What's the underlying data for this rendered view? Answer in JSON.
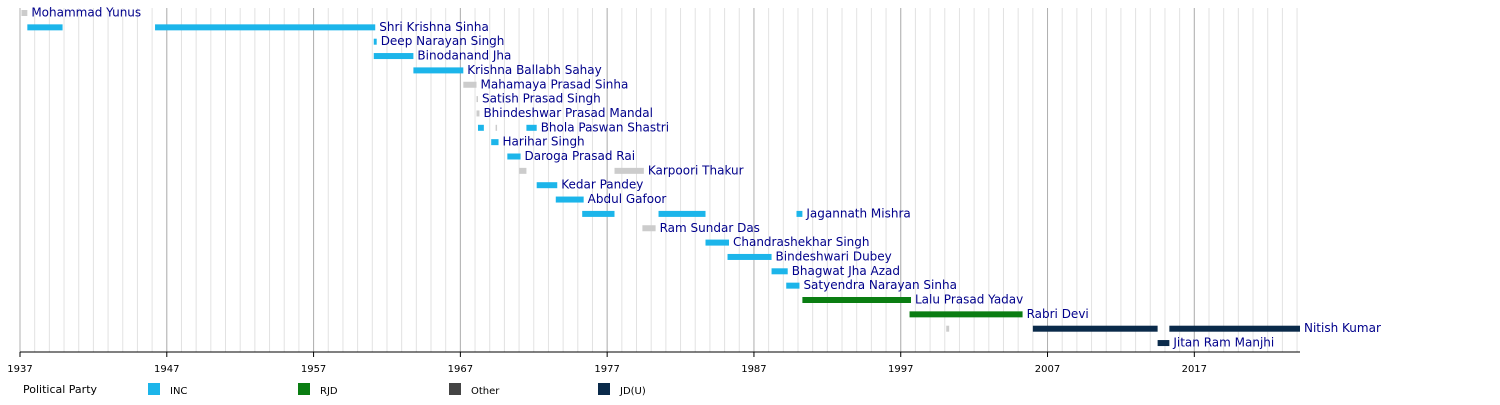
{
  "chart_data": {
    "type": "timeline",
    "xlim": [
      1937,
      2024.2
    ],
    "xticks": [
      1937,
      1947,
      1957,
      1967,
      1977,
      1987,
      1997,
      2007,
      2017
    ],
    "minor_grid": true,
    "legend_title": "Political Party",
    "parties": [
      {
        "name": "INC",
        "color": "#1cb5ea",
        "bar_color": "#1cb5ea"
      },
      {
        "name": "RJD",
        "color": "#0a7d12",
        "bar_color": "#0a7d12"
      },
      {
        "name": "Other",
        "color": "#444444",
        "bar_color": "#cccccc"
      },
      {
        "name": "JD(U)",
        "color": "#0a2a4a",
        "bar_color": "#0a2a4a"
      }
    ],
    "rows": [
      {
        "name": "Mohammad Yunus",
        "segments": [
          {
            "start": 1937.1,
            "end": 1937.5,
            "party": "Other"
          }
        ]
      },
      {
        "name": "Shri Krishna Sinha",
        "segments": [
          {
            "start": 1937.5,
            "end": 1939.9,
            "party": "INC"
          },
          {
            "start": 1946.2,
            "end": 1961.2,
            "party": "INC"
          }
        ]
      },
      {
        "name": "Deep Narayan Singh",
        "segments": [
          {
            "start": 1961.1,
            "end": 1961.3,
            "party": "INC"
          }
        ]
      },
      {
        "name": "Binodanand Jha",
        "segments": [
          {
            "start": 1961.1,
            "end": 1963.8,
            "party": "INC"
          }
        ]
      },
      {
        "name": "Krishna Ballabh Sahay",
        "segments": [
          {
            "start": 1963.8,
            "end": 1967.2,
            "party": "INC"
          }
        ]
      },
      {
        "name": "Mahamaya Prasad Sinha",
        "segments": [
          {
            "start": 1967.2,
            "end": 1968.1,
            "party": "Other"
          }
        ]
      },
      {
        "name": "Satish Prasad Singh",
        "segments": [
          {
            "start": 1968.1,
            "end": 1968.2,
            "party": "Other"
          }
        ]
      },
      {
        "name": "Bhindeshwar Prasad Mandal",
        "segments": [
          {
            "start": 1968.1,
            "end": 1968.3,
            "party": "Other"
          }
        ]
      },
      {
        "name": "Bhola Paswan Shastri",
        "segments": [
          {
            "start": 1968.2,
            "end": 1968.6,
            "party": "INC"
          },
          {
            "start": 1969.4,
            "end": 1969.5,
            "party": "Other"
          },
          {
            "start": 1971.5,
            "end": 1972.2,
            "party": "INC"
          }
        ]
      },
      {
        "name": "Harihar Singh",
        "segments": [
          {
            "start": 1969.1,
            "end": 1969.6,
            "party": "INC"
          }
        ]
      },
      {
        "name": "Daroga Prasad Rai",
        "segments": [
          {
            "start": 1970.2,
            "end": 1971.1,
            "party": "INC"
          }
        ]
      },
      {
        "name": "Karpoori Thakur",
        "segments": [
          {
            "start": 1971.0,
            "end": 1971.5,
            "party": "Other"
          },
          {
            "start": 1977.5,
            "end": 1979.5,
            "party": "Other"
          }
        ]
      },
      {
        "name": "Kedar Pandey",
        "segments": [
          {
            "start": 1972.2,
            "end": 1973.6,
            "party": "INC"
          }
        ]
      },
      {
        "name": "Abdul Gafoor",
        "segments": [
          {
            "start": 1973.5,
            "end": 1975.4,
            "party": "INC"
          }
        ]
      },
      {
        "name": "Jagannath Mishra",
        "segments": [
          {
            "start": 1975.3,
            "end": 1977.5,
            "party": "INC"
          },
          {
            "start": 1980.5,
            "end": 1983.7,
            "party": "INC"
          },
          {
            "start": 1989.9,
            "end": 1990.3,
            "party": "INC"
          }
        ]
      },
      {
        "name": "Ram Sundar Das",
        "segments": [
          {
            "start": 1979.4,
            "end": 1980.3,
            "party": "Other"
          }
        ]
      },
      {
        "name": "Chandrashekhar Singh",
        "segments": [
          {
            "start": 1983.7,
            "end": 1985.3,
            "party": "INC"
          }
        ]
      },
      {
        "name": "Bindeshwari Dubey",
        "segments": [
          {
            "start": 1985.2,
            "end": 1988.2,
            "party": "INC"
          }
        ]
      },
      {
        "name": "Bhagwat Jha Azad",
        "segments": [
          {
            "start": 1988.2,
            "end": 1989.3,
            "party": "INC"
          }
        ]
      },
      {
        "name": "Satyendra Narayan Sinha",
        "segments": [
          {
            "start": 1989.2,
            "end": 1990.1,
            "party": "INC"
          }
        ]
      },
      {
        "name": "Lalu Prasad Yadav",
        "segments": [
          {
            "start": 1990.3,
            "end": 1997.7,
            "party": "RJD"
          }
        ]
      },
      {
        "name": "Rabri Devi",
        "segments": [
          {
            "start": 1997.6,
            "end": 2005.3,
            "party": "RJD"
          }
        ]
      },
      {
        "name": "Nitish Kumar",
        "segments": [
          {
            "start": 2000.1,
            "end": 2000.3,
            "party": "Other"
          },
          {
            "start": 2006.0,
            "end": 2014.5,
            "party": "JD(U)"
          },
          {
            "start": 2015.3,
            "end": 2024.2,
            "party": "JD(U)"
          }
        ]
      },
      {
        "name": "Jitan Ram Manjhi",
        "segments": [
          {
            "start": 2014.5,
            "end": 2015.3,
            "party": "JD(U)"
          }
        ]
      }
    ]
  }
}
